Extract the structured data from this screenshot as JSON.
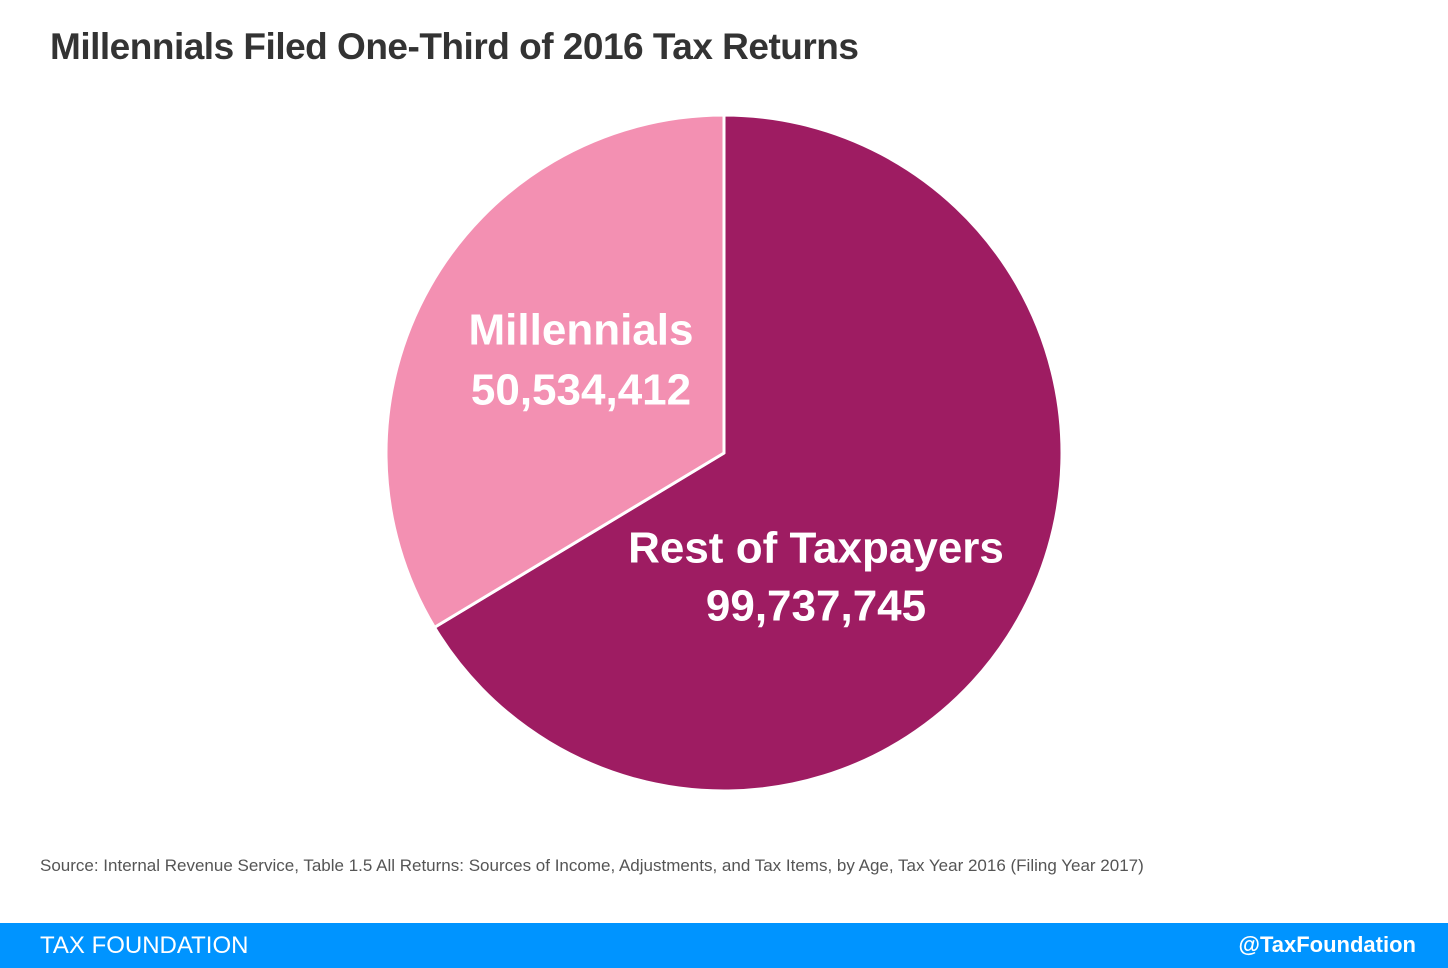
{
  "chart_data": {
    "type": "pie",
    "title": "Millennials Filed One-Third of 2016 Tax Returns",
    "slices": [
      {
        "label": "Rest of Taxpayers",
        "value": 99737745,
        "value_label": "99,737,745",
        "color": "#9e1c62"
      },
      {
        "label": "Millennials",
        "value": 50534412,
        "value_label": "50,534,412",
        "color": "#f390b2"
      }
    ],
    "start_angle": "12 o'clock",
    "direction": "clockwise",
    "legend": "none"
  },
  "source": "Source: Internal Revenue Service, Table 1.5 All Returns: Sources of Income, Adjustments, and Tax Items, by Age, Tax Year 2016 (Filing Year 2017)",
  "footer": {
    "brand": "TAX FOUNDATION",
    "handle": "@TaxFoundation",
    "color": "#0094ff"
  }
}
